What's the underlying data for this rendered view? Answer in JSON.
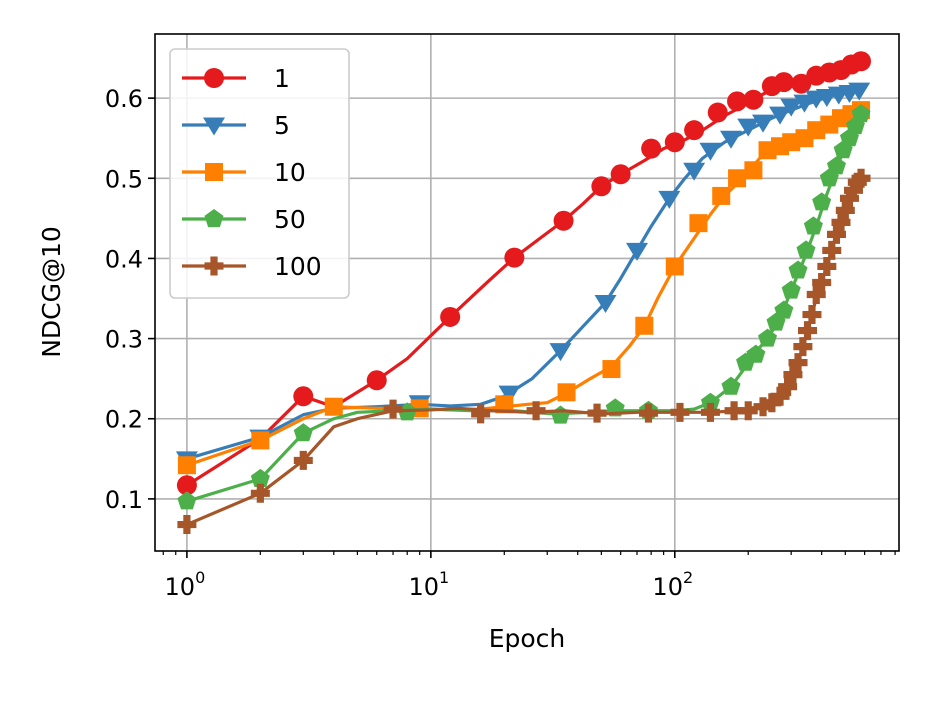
{
  "chart_data": {
    "type": "line",
    "xlabel": "Epoch",
    "ylabel": "NDCG@10",
    "xscale": "log",
    "xlim": [
      0.74,
      830
    ],
    "ylim": [
      0.035,
      0.68
    ],
    "grid": true,
    "legend_position": "top-left",
    "x_ticks": [
      {
        "value": 1,
        "base": "10",
        "exp": "0"
      },
      {
        "value": 10,
        "base": "10",
        "exp": "1"
      },
      {
        "value": 100,
        "base": "10",
        "exp": "2"
      }
    ],
    "y_ticks": [
      {
        "value": 0.1,
        "label": "0.1"
      },
      {
        "value": 0.2,
        "label": "0.2"
      },
      {
        "value": 0.3,
        "label": "0.3"
      },
      {
        "value": 0.4,
        "label": "0.4"
      },
      {
        "value": 0.5,
        "label": "0.5"
      },
      {
        "value": 0.6,
        "label": "0.6"
      }
    ],
    "series": [
      {
        "name": "1",
        "color": "#e41a1c",
        "marker": "circle",
        "points": [
          [
            1,
            0.117
          ],
          [
            2,
            0.175
          ],
          [
            3,
            0.228
          ],
          [
            4,
            0.215
          ],
          [
            6,
            0.248
          ],
          [
            8,
            0.275
          ],
          [
            12,
            0.327
          ],
          [
            17,
            0.37
          ],
          [
            22,
            0.401
          ],
          [
            28,
            0.425
          ],
          [
            35,
            0.447
          ],
          [
            42,
            0.468
          ],
          [
            50,
            0.49
          ],
          [
            60,
            0.505
          ],
          [
            75,
            0.522
          ],
          [
            90,
            0.537
          ],
          [
            110,
            0.548
          ],
          [
            130,
            0.56
          ],
          [
            160,
            0.578
          ],
          [
            190,
            0.59
          ],
          [
            230,
            0.605
          ],
          [
            270,
            0.615
          ],
          [
            320,
            0.618
          ],
          [
            380,
            0.625
          ],
          [
            450,
            0.632
          ],
          [
            520,
            0.64
          ],
          [
            580,
            0.646
          ]
        ],
        "markers": [
          [
            1,
            0.117
          ],
          [
            3,
            0.228
          ],
          [
            6,
            0.248
          ],
          [
            12,
            0.327
          ],
          [
            22,
            0.401
          ],
          [
            35,
            0.447
          ],
          [
            50,
            0.49
          ],
          [
            60,
            0.505
          ],
          [
            80,
            0.537
          ],
          [
            100,
            0.545
          ],
          [
            120,
            0.56
          ],
          [
            150,
            0.582
          ],
          [
            180,
            0.596
          ],
          [
            210,
            0.598
          ],
          [
            250,
            0.615
          ],
          [
            280,
            0.62
          ],
          [
            330,
            0.618
          ],
          [
            380,
            0.628
          ],
          [
            430,
            0.632
          ],
          [
            480,
            0.635
          ],
          [
            530,
            0.642
          ],
          [
            580,
            0.646
          ]
        ]
      },
      {
        "name": "5",
        "color": "#377eb8",
        "marker": "triangle-down",
        "points": [
          [
            1,
            0.15
          ],
          [
            2,
            0.177
          ],
          [
            3,
            0.205
          ],
          [
            4,
            0.213
          ],
          [
            6,
            0.215
          ],
          [
            9,
            0.218
          ],
          [
            12,
            0.216
          ],
          [
            16,
            0.218
          ],
          [
            20,
            0.228
          ],
          [
            26,
            0.25
          ],
          [
            34,
            0.285
          ],
          [
            42,
            0.315
          ],
          [
            52,
            0.345
          ],
          [
            60,
            0.375
          ],
          [
            70,
            0.41
          ],
          [
            80,
            0.44
          ],
          [
            95,
            0.475
          ],
          [
            110,
            0.5
          ],
          [
            130,
            0.525
          ],
          [
            160,
            0.545
          ],
          [
            200,
            0.56
          ],
          [
            250,
            0.575
          ],
          [
            300,
            0.585
          ],
          [
            360,
            0.594
          ],
          [
            430,
            0.602
          ],
          [
            500,
            0.606
          ],
          [
            580,
            0.61
          ]
        ],
        "markers": [
          [
            1,
            0.15
          ],
          [
            2,
            0.177
          ],
          [
            9,
            0.22
          ],
          [
            21,
            0.232
          ],
          [
            34,
            0.285
          ],
          [
            52,
            0.345
          ],
          [
            70,
            0.41
          ],
          [
            95,
            0.475
          ],
          [
            120,
            0.51
          ],
          [
            140,
            0.535
          ],
          [
            170,
            0.55
          ],
          [
            200,
            0.565
          ],
          [
            230,
            0.57
          ],
          [
            270,
            0.58
          ],
          [
            300,
            0.59
          ],
          [
            340,
            0.595
          ],
          [
            380,
            0.6
          ],
          [
            420,
            0.602
          ],
          [
            470,
            0.605
          ],
          [
            520,
            0.607
          ],
          [
            570,
            0.61
          ]
        ]
      },
      {
        "name": "10",
        "color": "#ff7f00",
        "marker": "square",
        "points": [
          [
            1,
            0.142
          ],
          [
            2,
            0.173
          ],
          [
            3,
            0.2
          ],
          [
            4,
            0.215
          ],
          [
            6,
            0.213
          ],
          [
            9,
            0.213
          ],
          [
            12,
            0.211
          ],
          [
            16,
            0.212
          ],
          [
            20,
            0.215
          ],
          [
            25,
            0.218
          ],
          [
            30,
            0.22
          ],
          [
            36,
            0.232
          ],
          [
            45,
            0.25
          ],
          [
            55,
            0.265
          ],
          [
            65,
            0.29
          ],
          [
            75,
            0.315
          ],
          [
            85,
            0.35
          ],
          [
            100,
            0.39
          ],
          [
            120,
            0.425
          ],
          [
            140,
            0.455
          ],
          [
            160,
            0.478
          ],
          [
            190,
            0.5
          ],
          [
            230,
            0.53
          ],
          [
            280,
            0.545
          ],
          [
            340,
            0.555
          ],
          [
            420,
            0.568
          ],
          [
            500,
            0.578
          ],
          [
            580,
            0.585
          ]
        ],
        "markers": [
          [
            1,
            0.142
          ],
          [
            2,
            0.173
          ],
          [
            4,
            0.215
          ],
          [
            9,
            0.213
          ],
          [
            20,
            0.218
          ],
          [
            36,
            0.233
          ],
          [
            55,
            0.262
          ],
          [
            75,
            0.316
          ],
          [
            100,
            0.39
          ],
          [
            125,
            0.444
          ],
          [
            155,
            0.478
          ],
          [
            180,
            0.5
          ],
          [
            210,
            0.51
          ],
          [
            240,
            0.535
          ],
          [
            270,
            0.54
          ],
          [
            300,
            0.545
          ],
          [
            340,
            0.55
          ],
          [
            380,
            0.56
          ],
          [
            430,
            0.567
          ],
          [
            480,
            0.575
          ],
          [
            530,
            0.58
          ],
          [
            580,
            0.585
          ]
        ]
      },
      {
        "name": "50",
        "color": "#4daf4a",
        "marker": "pentagon",
        "points": [
          [
            1,
            0.097
          ],
          [
            2,
            0.125
          ],
          [
            3,
            0.182
          ],
          [
            4,
            0.2
          ],
          [
            5,
            0.208
          ],
          [
            7,
            0.21
          ],
          [
            10,
            0.212
          ],
          [
            15,
            0.21
          ],
          [
            22,
            0.21
          ],
          [
            32,
            0.206
          ],
          [
            45,
            0.208
          ],
          [
            60,
            0.21
          ],
          [
            80,
            0.21
          ],
          [
            100,
            0.21
          ],
          [
            120,
            0.212
          ],
          [
            140,
            0.22
          ],
          [
            170,
            0.24
          ],
          [
            190,
            0.26
          ],
          [
            210,
            0.28
          ],
          [
            240,
            0.3
          ],
          [
            270,
            0.325
          ],
          [
            300,
            0.36
          ],
          [
            340,
            0.4
          ],
          [
            380,
            0.44
          ],
          [
            420,
            0.48
          ],
          [
            470,
            0.52
          ],
          [
            520,
            0.55
          ],
          [
            580,
            0.58
          ]
        ],
        "markers": [
          [
            1,
            0.097
          ],
          [
            2,
            0.125
          ],
          [
            3,
            0.182
          ],
          [
            8,
            0.208
          ],
          [
            34,
            0.204
          ],
          [
            57,
            0.213
          ],
          [
            78,
            0.21
          ],
          [
            140,
            0.22
          ],
          [
            170,
            0.24
          ],
          [
            195,
            0.27
          ],
          [
            215,
            0.28
          ],
          [
            240,
            0.3
          ],
          [
            260,
            0.32
          ],
          [
            280,
            0.335
          ],
          [
            300,
            0.36
          ],
          [
            320,
            0.385
          ],
          [
            345,
            0.41
          ],
          [
            370,
            0.44
          ],
          [
            400,
            0.47
          ],
          [
            430,
            0.5
          ],
          [
            460,
            0.515
          ],
          [
            490,
            0.535
          ],
          [
            520,
            0.55
          ],
          [
            550,
            0.565
          ],
          [
            580,
            0.58
          ]
        ]
      },
      {
        "name": "100",
        "color": "#a65628",
        "marker": "plus",
        "points": [
          [
            1,
            0.068
          ],
          [
            2,
            0.107
          ],
          [
            3,
            0.148
          ],
          [
            4,
            0.19
          ],
          [
            5,
            0.2
          ],
          [
            7,
            0.21
          ],
          [
            10,
            0.211
          ],
          [
            13,
            0.213
          ],
          [
            18,
            0.21
          ],
          [
            25,
            0.208
          ],
          [
            35,
            0.21
          ],
          [
            50,
            0.206
          ],
          [
            70,
            0.208
          ],
          [
            100,
            0.208
          ],
          [
            140,
            0.208
          ],
          [
            180,
            0.21
          ],
          [
            220,
            0.215
          ],
          [
            260,
            0.225
          ],
          [
            290,
            0.24
          ],
          [
            320,
            0.27
          ],
          [
            350,
            0.31
          ],
          [
            380,
            0.35
          ],
          [
            420,
            0.39
          ],
          [
            460,
            0.43
          ],
          [
            500,
            0.46
          ],
          [
            540,
            0.485
          ],
          [
            580,
            0.5
          ]
        ],
        "markers": [
          [
            1,
            0.068
          ],
          [
            2,
            0.107
          ],
          [
            3,
            0.148
          ],
          [
            7,
            0.212
          ],
          [
            16,
            0.206
          ],
          [
            27,
            0.21
          ],
          [
            48,
            0.207
          ],
          [
            78,
            0.207
          ],
          [
            105,
            0.208
          ],
          [
            140,
            0.208
          ],
          [
            175,
            0.21
          ],
          [
            200,
            0.21
          ],
          [
            230,
            0.215
          ],
          [
            250,
            0.22
          ],
          [
            270,
            0.228
          ],
          [
            290,
            0.24
          ],
          [
            305,
            0.255
          ],
          [
            320,
            0.27
          ],
          [
            335,
            0.29
          ],
          [
            350,
            0.31
          ],
          [
            365,
            0.33
          ],
          [
            380,
            0.355
          ],
          [
            400,
            0.37
          ],
          [
            420,
            0.39
          ],
          [
            440,
            0.41
          ],
          [
            460,
            0.43
          ],
          [
            480,
            0.445
          ],
          [
            500,
            0.46
          ],
          [
            520,
            0.475
          ],
          [
            540,
            0.485
          ],
          [
            560,
            0.495
          ],
          [
            580,
            0.5
          ]
        ]
      }
    ]
  }
}
